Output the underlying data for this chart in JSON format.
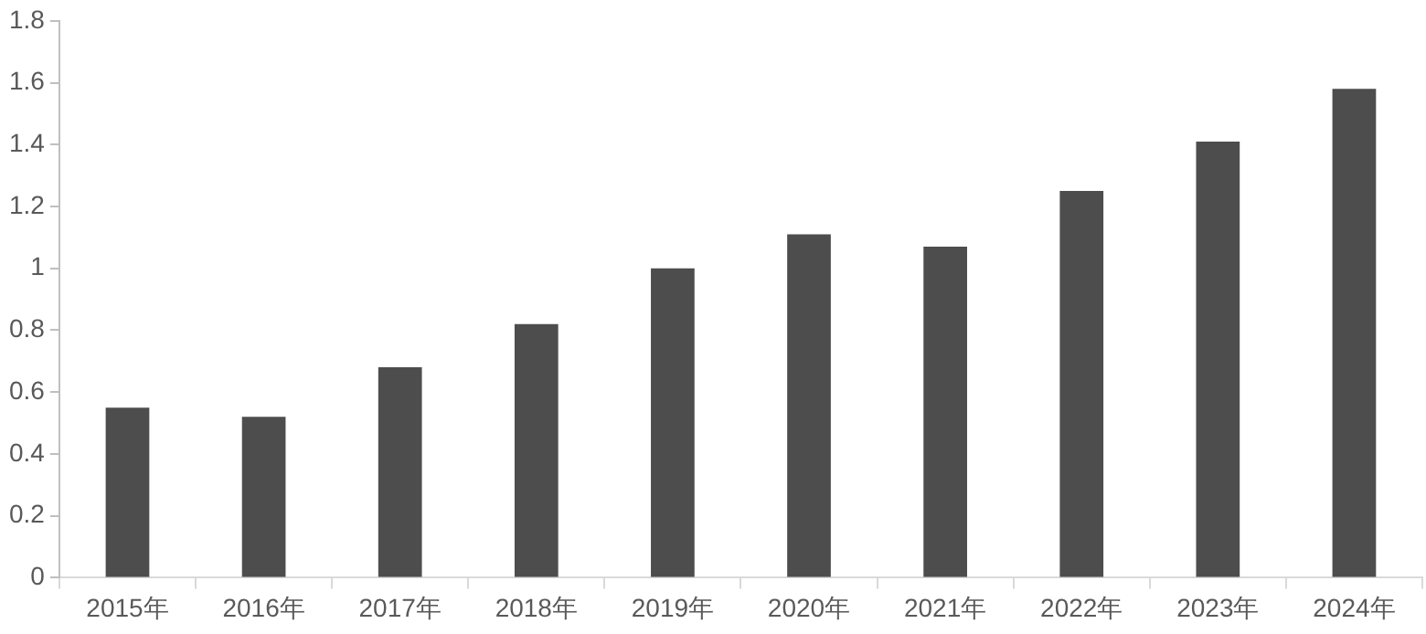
{
  "chart_data": {
    "type": "bar",
    "categories": [
      "2015年",
      "2016年",
      "2017年",
      "2018年",
      "2019年",
      "2020年",
      "2021年",
      "2022年",
      "2023年",
      "2024年"
    ],
    "values": [
      0.55,
      0.52,
      0.68,
      0.82,
      1.0,
      1.11,
      1.07,
      1.25,
      1.41,
      1.58
    ],
    "color": "#4d4d4d",
    "ylim": [
      0,
      1.8
    ],
    "yticks": [
      0,
      0.2,
      0.4,
      0.6,
      0.8,
      1,
      1.2,
      1.4,
      1.6,
      1.8
    ],
    "grid": false
  }
}
